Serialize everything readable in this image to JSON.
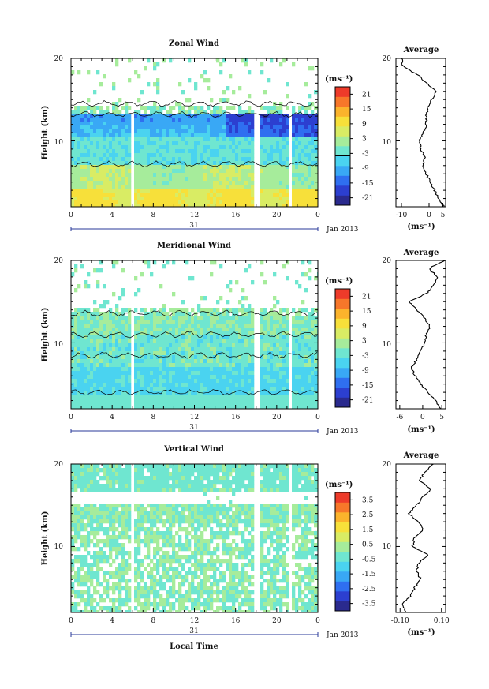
{
  "colorbar_ticks": {
    "wind": [
      "21",
      "15",
      "9",
      "3",
      "-3",
      "-9",
      "-15",
      "-21"
    ],
    "vertical": [
      "3.5",
      "2.5",
      "1.5",
      "0.5",
      "-0.5",
      "-1.5",
      "-2.5",
      "-3.5"
    ]
  },
  "colormap": [
    "#2a2a8e",
    "#2c3fd0",
    "#2f6ff0",
    "#39a8f5",
    "#4ad3f0",
    "#6fe6d0",
    "#a6ec9b",
    "#d9ec64",
    "#f7e03a",
    "#fbb32c",
    "#f7772a",
    "#ee3b2a"
  ],
  "chart_data": [
    {
      "type": "heatmap",
      "title": "Zonal Wind",
      "ylabel": "Height (km)",
      "y_ticks": [
        "20",
        "10"
      ],
      "x_ticks": [
        "0",
        "4",
        "8",
        "12",
        "16",
        "20",
        "0"
      ],
      "xlim": [
        0,
        24
      ],
      "ylim": [
        2,
        20
      ],
      "date_label": "31",
      "date_suffix": "Jan 2013",
      "colorbar_unit": "(ms⁻¹)",
      "colorbar_range": [
        -24,
        24
      ],
      "field": "zonal",
      "profile": {
        "title": "Average",
        "unit": "(ms⁻¹)",
        "x_ticks": [
          "-10",
          "0",
          "5"
        ],
        "xlim": [
          -12,
          6
        ],
        "y_ticks": [
          "20",
          "10"
        ],
        "height_km": [
          2,
          3,
          4,
          5,
          6,
          7,
          8,
          9,
          10,
          11,
          12,
          13,
          14,
          15,
          16,
          17,
          18,
          19,
          20
        ],
        "value": [
          5.5,
          3.5,
          2.0,
          0.5,
          -1.0,
          -2.5,
          -1.5,
          -3.0,
          -3.5,
          -2.0,
          -1.0,
          -1.0,
          -0.5,
          1.0,
          2.5,
          -1.0,
          -4.0,
          -9.5,
          -10.0
        ]
      }
    },
    {
      "type": "heatmap",
      "title": "Meridional Wind",
      "ylabel": "Height (km)",
      "y_ticks": [
        "20",
        "10"
      ],
      "x_ticks": [
        "0",
        "4",
        "8",
        "12",
        "16",
        "20",
        "0"
      ],
      "xlim": [
        0,
        24
      ],
      "ylim": [
        2,
        20
      ],
      "date_label": "31",
      "date_suffix": "Jan 2013",
      "colorbar_unit": "(ms⁻¹)",
      "colorbar_range": [
        -24,
        24
      ],
      "field": "meridional",
      "profile": {
        "title": "Average",
        "unit": "(ms⁻¹)",
        "x_ticks": [
          "-6",
          "0",
          "5"
        ],
        "xlim": [
          -7,
          6
        ],
        "y_ticks": [
          "20",
          "10"
        ],
        "height_km": [
          2,
          3,
          4,
          5,
          6,
          7,
          8,
          9,
          10,
          11,
          12,
          13,
          14,
          15,
          16,
          17,
          18,
          19,
          20
        ],
        "value": [
          4.5,
          3.5,
          1.5,
          -0.5,
          -2.0,
          -3.0,
          -1.5,
          -0.5,
          0.5,
          1.0,
          2.0,
          0.5,
          -1.5,
          -3.5,
          1.0,
          3.0,
          4.0,
          1.5,
          6.0
        ]
      }
    },
    {
      "type": "heatmap",
      "title": "Vertical Wind",
      "ylabel": "Height (km)",
      "y_ticks": [
        "20",
        "10"
      ],
      "x_ticks": [
        "0",
        "4",
        "8",
        "12",
        "16",
        "20",
        "0"
      ],
      "xlim": [
        0,
        24
      ],
      "ylim": [
        2,
        20
      ],
      "date_label": "31",
      "date_suffix": "Jan 2013",
      "xlabel": "Local Time",
      "colorbar_unit": "(ms⁻¹)",
      "colorbar_range": [
        -4,
        4
      ],
      "field": "vertical",
      "profile": {
        "title": "Average",
        "unit": "(ms⁻¹)",
        "x_ticks": [
          "-0.10",
          "0.10"
        ],
        "xlim": [
          -0.12,
          0.12
        ],
        "y_ticks": [
          "20",
          "10"
        ],
        "height_km": [
          2,
          3,
          4,
          5,
          6,
          7,
          8,
          9,
          10,
          11,
          12,
          13,
          14,
          15,
          16,
          17,
          18,
          19,
          20
        ],
        "value": [
          -0.07,
          -0.09,
          -0.05,
          -0.03,
          0.0,
          -0.02,
          -0.01,
          0.04,
          -0.04,
          -0.03,
          0.01,
          -0.01,
          -0.06,
          -0.02,
          0.01,
          0.05,
          -0.01,
          0.02,
          0.06
        ]
      }
    }
  ]
}
